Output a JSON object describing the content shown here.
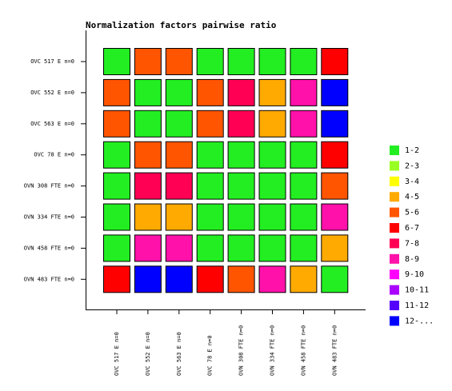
{
  "chart_data": {
    "type": "heatmap",
    "title": "Normalization factors pairwise ratio",
    "rows": [
      "OVC 517 E n=0",
      "OVC 552 E n=0",
      "OVC 563 E n=0",
      "OVC 78 E n=0",
      "OVN 308 FTE n=0",
      "OVN 334 FTE n=0",
      "OVN 458 FTE n=0",
      "OVN 483 FTE n=0"
    ],
    "columns": [
      "OVC 517 E n=0",
      "OVC 552 E n=0",
      "OVC 563 E n=0",
      "OVC 78 E n=0",
      "OVN 308 FTE n=0",
      "OVN 334 FTE n=0",
      "OVN 458 FTE n=0",
      "OVN 483 FTE n=0"
    ],
    "legend": [
      {
        "label": "1-2",
        "color": "#22ee22"
      },
      {
        "label": "2-3",
        "color": "#99ff22"
      },
      {
        "label": "3-4",
        "color": "#ffff00"
      },
      {
        "label": "4-5",
        "color": "#ffaa00"
      },
      {
        "label": "5-6",
        "color": "#ff5500"
      },
      {
        "label": "6-7",
        "color": "#ff0000"
      },
      {
        "label": "7-8",
        "color": "#ff0055"
      },
      {
        "label": "8-9",
        "color": "#ff11aa"
      },
      {
        "label": "9-10",
        "color": "#ff00ff"
      },
      {
        "label": "10-11",
        "color": "#aa00ff"
      },
      {
        "label": "11-12",
        "color": "#5500ff"
      },
      {
        "label": "12-...",
        "color": "#0000ff"
      }
    ],
    "cells": [
      [
        "1-2",
        "5-6",
        "5-6",
        "1-2",
        "1-2",
        "1-2",
        "1-2",
        "6-7"
      ],
      [
        "5-6",
        "1-2",
        "1-2",
        "5-6",
        "7-8",
        "4-5",
        "8-9",
        "12-..."
      ],
      [
        "5-6",
        "1-2",
        "1-2",
        "5-6",
        "7-8",
        "4-5",
        "8-9",
        "12-..."
      ],
      [
        "1-2",
        "5-6",
        "5-6",
        "1-2",
        "1-2",
        "1-2",
        "1-2",
        "6-7"
      ],
      [
        "1-2",
        "7-8",
        "7-8",
        "1-2",
        "1-2",
        "1-2",
        "1-2",
        "5-6"
      ],
      [
        "1-2",
        "4-5",
        "4-5",
        "1-2",
        "1-2",
        "1-2",
        "1-2",
        "8-9"
      ],
      [
        "1-2",
        "8-9",
        "8-9",
        "1-2",
        "1-2",
        "1-2",
        "1-2",
        "4-5"
      ],
      [
        "6-7",
        "12-...",
        "12-...",
        "6-7",
        "5-6",
        "8-9",
        "4-5",
        "1-2"
      ]
    ]
  }
}
